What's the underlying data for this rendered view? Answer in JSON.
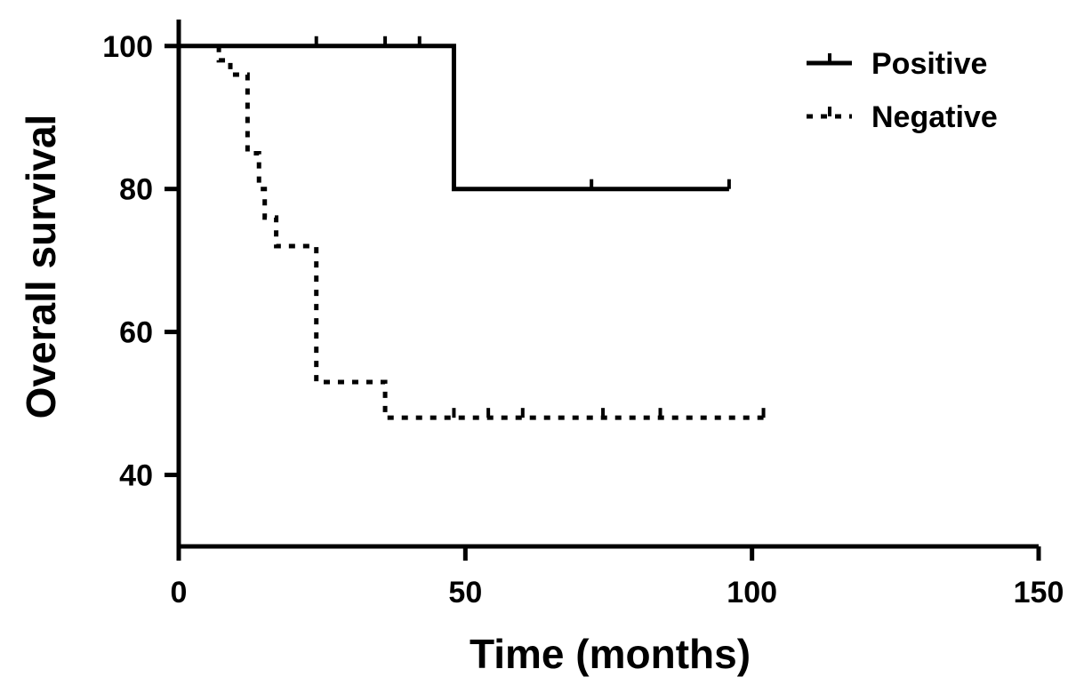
{
  "chart_data": {
    "type": "line",
    "xlabel": "Time (months)",
    "ylabel": "Overall survival",
    "xlim": [
      0,
      150
    ],
    "ylim": [
      30,
      100
    ],
    "x_ticks": [
      0,
      50,
      100,
      150
    ],
    "y_ticks": [
      40,
      60,
      80,
      100
    ],
    "grid": false,
    "legend": "top-right",
    "series": [
      {
        "name": "Positive",
        "style": "solid",
        "color": "#000000",
        "steps": [
          [
            0,
            100
          ],
          [
            48,
            100
          ],
          [
            48,
            80
          ],
          [
            96,
            80
          ]
        ],
        "censored": [
          [
            24,
            100
          ],
          [
            36,
            100
          ],
          [
            42,
            100
          ],
          [
            72,
            80
          ],
          [
            96,
            80
          ]
        ]
      },
      {
        "name": "Negative",
        "style": "dotted",
        "color": "#000000",
        "steps": [
          [
            7,
            100
          ],
          [
            7,
            98
          ],
          [
            9,
            98
          ],
          [
            9,
            96
          ],
          [
            12,
            96
          ],
          [
            12,
            85
          ],
          [
            14,
            85
          ],
          [
            14,
            80
          ],
          [
            15,
            80
          ],
          [
            15,
            76
          ],
          [
            17,
            76
          ],
          [
            17,
            72
          ],
          [
            24,
            72
          ],
          [
            24,
            53
          ],
          [
            36,
            53
          ],
          [
            36,
            48
          ],
          [
            102,
            48
          ]
        ],
        "censored": [
          [
            48,
            48
          ],
          [
            54,
            48
          ],
          [
            60,
            48
          ],
          [
            74,
            48
          ],
          [
            84,
            48
          ],
          [
            102,
            48
          ]
        ]
      }
    ]
  }
}
